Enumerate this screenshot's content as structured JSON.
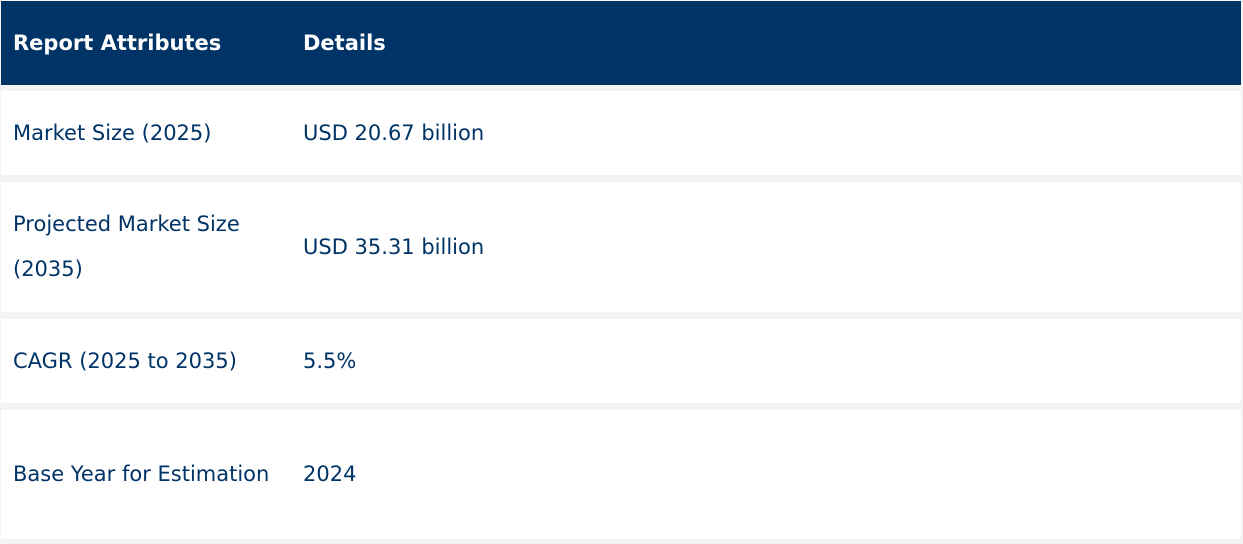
{
  "table": {
    "headers": [
      "Report Attributes",
      "Details"
    ],
    "rows": [
      {
        "attribute": "Market Size (2025)",
        "details": "USD 20.67 billion"
      },
      {
        "attribute": "Projected Market Size (2035)",
        "details": "USD 35.31 billion"
      },
      {
        "attribute": "CAGR (2025 to 2035)",
        "details": "5.5%"
      },
      {
        "attribute": "Base Year for Estimation",
        "details": "2024"
      }
    ]
  },
  "colors": {
    "header_bg": "#003366",
    "header_text": "#ffffff",
    "body_text": "#003366",
    "row_bg": "#ffffff",
    "separator": "#f3f3f3"
  }
}
